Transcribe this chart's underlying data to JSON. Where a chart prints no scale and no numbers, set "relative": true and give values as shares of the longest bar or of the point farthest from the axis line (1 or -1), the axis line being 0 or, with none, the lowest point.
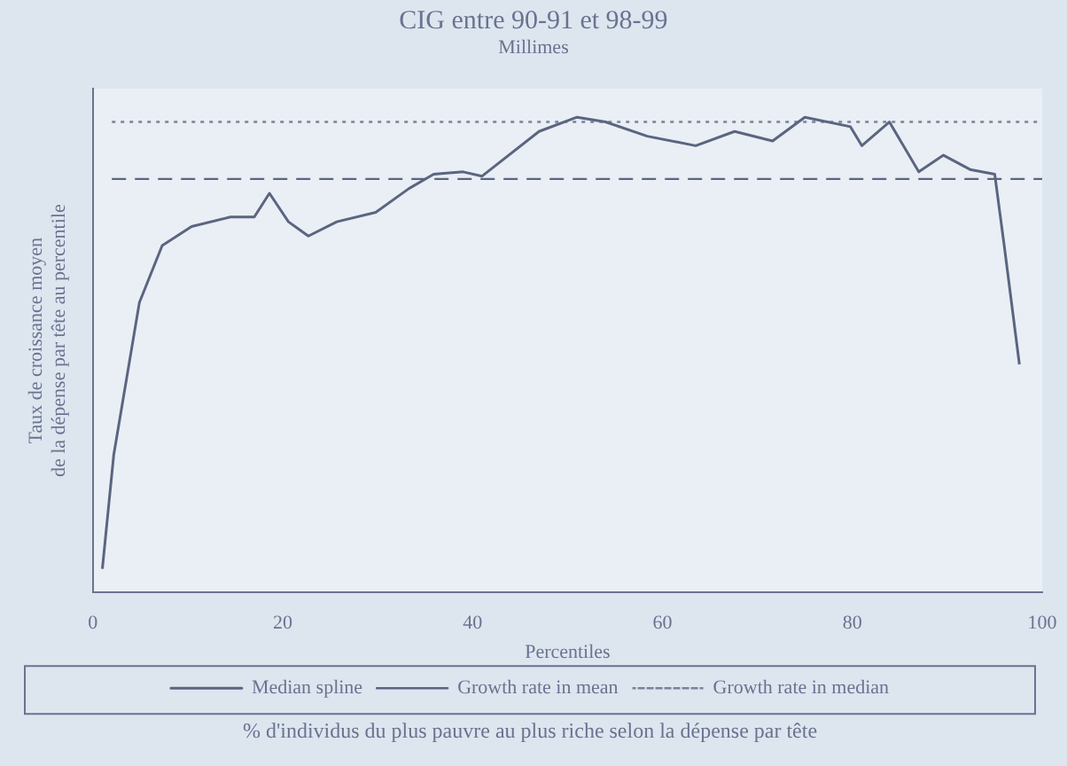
{
  "chart_data": {
    "type": "line",
    "title": "CIG entre 90-91 et 98-99",
    "subtitle": "Millimes",
    "xlabel": "Percentiles",
    "ylabel": "Taux de croissance moyen\nde la dépense par tête au percentile",
    "annotations": [
      "% d'individus du plus pauvre au plus riche selon la dépense par tête"
    ],
    "relative": true,
    "xlim": [
      0,
      100
    ],
    "xticks": [
      0,
      20,
      40,
      60,
      80,
      100
    ],
    "legend": "bottom",
    "marker": "none",
    "series": [
      {
        "name": "Median spline",
        "color": "#5b6580",
        "line_style": "solid",
        "x": [
          1,
          2.2,
          4.9,
          7.3,
          10.4,
          14.5,
          17,
          18.6,
          20.6,
          22.7,
          25.7,
          29.8,
          33.3,
          35.9,
          39,
          41,
          47,
          51,
          54,
          58.4,
          63.5,
          67.6,
          71.6,
          75,
          79.8,
          81,
          83.9,
          87,
          89.6,
          92.4,
          95,
          96,
          97.6
        ],
        "values": [
          0.05,
          0.29,
          0.61,
          0.73,
          0.77,
          0.79,
          0.79,
          0.84,
          0.78,
          0.75,
          0.78,
          0.8,
          0.85,
          0.88,
          0.885,
          0.876,
          0.97,
          1.0,
          0.99,
          0.96,
          0.94,
          0.97,
          0.95,
          1.0,
          0.98,
          0.94,
          0.99,
          0.885,
          0.92,
          0.89,
          0.88,
          0.73,
          0.48
        ]
      },
      {
        "name": "Growth rate in mean",
        "color": "#5b6580",
        "line_style": "dashed",
        "x": [
          2,
          100
        ],
        "values": [
          0.87,
          0.87
        ]
      },
      {
        "name": "Growth rate in median",
        "color": "#7a8398",
        "line_style": "dotted",
        "x": [
          2,
          100
        ],
        "values": [
          0.99,
          0.99
        ]
      }
    ]
  }
}
